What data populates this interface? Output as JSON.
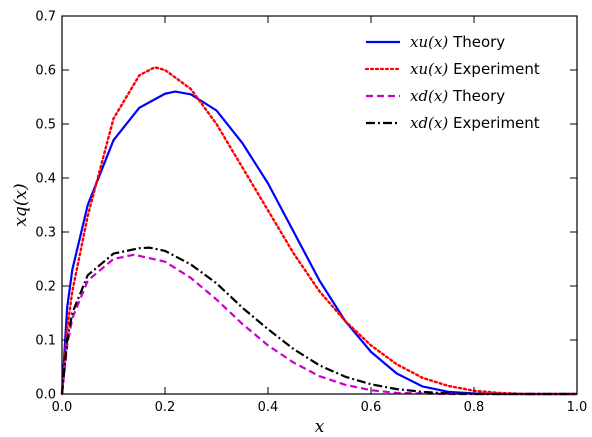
{
  "chart_data": {
    "type": "line",
    "title": "",
    "xlabel": "x",
    "ylabel": "xq(x)",
    "xlim": [
      0.0,
      1.0
    ],
    "ylim": [
      0.0,
      0.7
    ],
    "x_ticks": [
      "0.0",
      "0.2",
      "0.4",
      "0.6",
      "0.8",
      "1.0"
    ],
    "y_ticks": [
      "0.0",
      "0.1",
      "0.2",
      "0.3",
      "0.4",
      "0.5",
      "0.6",
      "0.7"
    ],
    "grid": false,
    "legend_position": "top-right",
    "series": [
      {
        "name_math": "xu(x)",
        "name_text": "Theory",
        "color": "#0000ff",
        "style": "solid",
        "x": [
          0,
          0.01,
          0.02,
          0.05,
          0.1,
          0.15,
          0.2,
          0.22,
          0.25,
          0.3,
          0.35,
          0.4,
          0.45,
          0.5,
          0.55,
          0.6,
          0.65,
          0.7,
          0.75,
          0.8,
          0.85,
          0.9,
          1.0
        ],
        "y": [
          0,
          0.16,
          0.23,
          0.35,
          0.47,
          0.53,
          0.556,
          0.56,
          0.555,
          0.525,
          0.465,
          0.39,
          0.3,
          0.21,
          0.135,
          0.078,
          0.038,
          0.014,
          0.004,
          0.001,
          0,
          0,
          0
        ]
      },
      {
        "name_math": "xu(x)",
        "name_text": "Experiment",
        "color": "#ff0000",
        "style": "dotted",
        "x": [
          0,
          0.01,
          0.02,
          0.05,
          0.1,
          0.15,
          0.18,
          0.2,
          0.25,
          0.3,
          0.35,
          0.4,
          0.45,
          0.5,
          0.55,
          0.6,
          0.65,
          0.7,
          0.75,
          0.8,
          0.85,
          0.9,
          1.0
        ],
        "y": [
          0,
          0.12,
          0.19,
          0.33,
          0.51,
          0.59,
          0.605,
          0.6,
          0.565,
          0.5,
          0.42,
          0.34,
          0.26,
          0.19,
          0.135,
          0.09,
          0.055,
          0.03,
          0.015,
          0.006,
          0.002,
          0,
          0
        ]
      },
      {
        "name_math": "xd(x)",
        "name_text": "Theory",
        "color": "#cc00cc",
        "style": "dashed",
        "x": [
          0,
          0.01,
          0.02,
          0.05,
          0.1,
          0.14,
          0.2,
          0.25,
          0.3,
          0.35,
          0.4,
          0.45,
          0.5,
          0.55,
          0.6,
          0.65,
          0.7,
          0.75,
          0.8,
          1.0
        ],
        "y": [
          0,
          0.09,
          0.14,
          0.21,
          0.25,
          0.258,
          0.245,
          0.215,
          0.175,
          0.13,
          0.09,
          0.058,
          0.033,
          0.017,
          0.007,
          0.002,
          0.001,
          0,
          0,
          0
        ]
      },
      {
        "name_math": "xd(x)",
        "name_text": "Experiment",
        "color": "#000000",
        "style": "dashdot",
        "x": [
          0,
          0.01,
          0.02,
          0.05,
          0.1,
          0.15,
          0.17,
          0.2,
          0.25,
          0.3,
          0.35,
          0.4,
          0.45,
          0.5,
          0.55,
          0.6,
          0.65,
          0.7,
          0.75,
          0.8,
          1.0
        ],
        "y": [
          0,
          0.1,
          0.15,
          0.22,
          0.26,
          0.27,
          0.271,
          0.265,
          0.24,
          0.205,
          0.16,
          0.12,
          0.083,
          0.053,
          0.032,
          0.018,
          0.009,
          0.004,
          0.001,
          0,
          0
        ]
      }
    ]
  }
}
